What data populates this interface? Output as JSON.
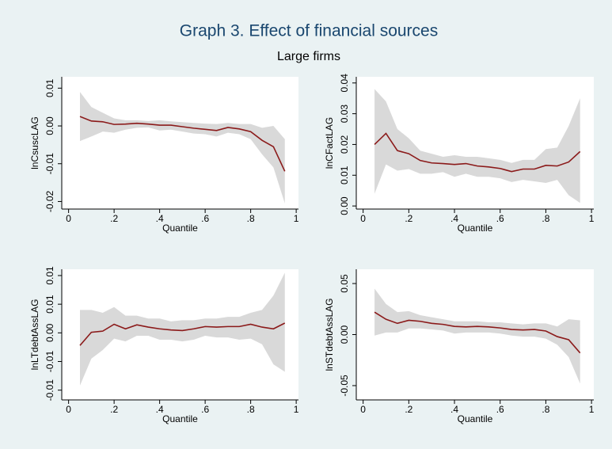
{
  "title": "Graph 3. Effect of financial sources",
  "subtitle": "Large firms",
  "chart_data": [
    {
      "type": "line",
      "ylabel": "lnCsuscLAG",
      "xlabel": "Quantile",
      "color": "#8b1a1a",
      "band_color": "#d9d9d9",
      "x": [
        0.05,
        0.1,
        0.15,
        0.2,
        0.25,
        0.3,
        0.35,
        0.4,
        0.45,
        0.5,
        0.55,
        0.6,
        0.65,
        0.7,
        0.75,
        0.8,
        0.85,
        0.9,
        0.95
      ],
      "values": [
        0.0025,
        0.0013,
        0.0011,
        0.0004,
        0.0005,
        0.0007,
        0.0005,
        0.0002,
        0.0002,
        -0.0002,
        -0.0006,
        -0.0009,
        -0.0012,
        -0.0004,
        -0.0008,
        -0.0015,
        -0.0038,
        -0.0055,
        -0.012
      ],
      "ci_upper": [
        0.009,
        0.005,
        0.0035,
        0.002,
        0.0015,
        0.0015,
        0.0013,
        0.0015,
        0.0012,
        0.001,
        0.0008,
        0.0006,
        0.0005,
        0.0008,
        0.0005,
        0.0005,
        -0.0005,
        0,
        -0.0035
      ],
      "ci_lower": [
        -0.004,
        -0.0028,
        -0.0015,
        -0.0018,
        -0.001,
        -0.0005,
        -0.0004,
        -0.0012,
        -0.001,
        -0.0015,
        -0.002,
        -0.0022,
        -0.0028,
        -0.0018,
        -0.0022,
        -0.0035,
        -0.0075,
        -0.011,
        -0.0205
      ],
      "xlim": [
        -0.03,
        1.01
      ],
      "xticks": [
        0,
        {
          "value": 0.2,
          "label": ".2"
        },
        {
          "value": 0.4,
          "label": ".4"
        },
        {
          "value": 0.6,
          "label": ".6"
        },
        {
          "value": 0.8,
          "label": ".8"
        },
        1
      ],
      "ylim": [
        -0.022,
        0.013
      ],
      "yticks": [
        {
          "value": -0.02,
          "label": "-0.02"
        },
        {
          "value": -0.01,
          "label": "-0.01"
        },
        {
          "value": 0,
          "label": "0.00"
        },
        0.01
      ]
    },
    {
      "type": "line",
      "ylabel": "lnCFactLAG",
      "xlabel": "Quantile",
      "color": "#8b1a1a",
      "band_color": "#d9d9d9",
      "x": [
        0.05,
        0.1,
        0.15,
        0.2,
        0.25,
        0.3,
        0.35,
        0.4,
        0.45,
        0.5,
        0.55,
        0.6,
        0.65,
        0.7,
        0.75,
        0.8,
        0.85,
        0.9,
        0.95
      ],
      "values": [
        0.02,
        0.0236,
        0.018,
        0.017,
        0.0148,
        0.014,
        0.0138,
        0.0135,
        0.0138,
        0.013,
        0.0127,
        0.0122,
        0.0112,
        0.012,
        0.012,
        0.0132,
        0.013,
        0.0143,
        0.0177
      ],
      "ci_upper": [
        0.038,
        0.034,
        0.025,
        0.022,
        0.018,
        0.017,
        0.016,
        0.0165,
        0.016,
        0.016,
        0.0155,
        0.015,
        0.014,
        0.015,
        0.015,
        0.0185,
        0.019,
        0.026,
        0.035
      ],
      "ci_lower": [
        0.004,
        0.0135,
        0.0115,
        0.012,
        0.0105,
        0.0105,
        0.011,
        0.0095,
        0.0105,
        0.0095,
        0.0095,
        0.009,
        0.0078,
        0.0085,
        0.008,
        0.0075,
        0.0085,
        0.0035,
        0.001
      ],
      "xlim": [
        -0.03,
        1.01
      ],
      "xticks": [
        0,
        {
          "value": 0.2,
          "label": ".2"
        },
        {
          "value": 0.4,
          "label": ".4"
        },
        {
          "value": 0.6,
          "label": ".6"
        },
        {
          "value": 0.8,
          "label": ".8"
        },
        1
      ],
      "ylim": [
        -0.001,
        0.042
      ],
      "yticks": [
        {
          "value": 0,
          "label": "0.00"
        },
        0.01,
        0.02,
        0.03,
        0.04
      ]
    },
    {
      "type": "line",
      "ylabel": "lnLTdebtAssLAG",
      "xlabel": "Quantile",
      "color": "#8b1a1a",
      "band_color": "#d9d9d9",
      "x": [
        0.05,
        0.1,
        0.15,
        0.2,
        0.25,
        0.3,
        0.35,
        0.4,
        0.45,
        0.5,
        0.55,
        0.6,
        0.65,
        0.7,
        0.75,
        0.8,
        0.85,
        0.9,
        0.95
      ],
      "values": [
        -0.0022,
        0.0001,
        0.0003,
        0.0015,
        0.0007,
        0.0014,
        0.001,
        0.0007,
        0.0005,
        0.0004,
        0.0007,
        0.0011,
        0.001,
        0.0011,
        0.0011,
        0.0015,
        0.001,
        0.0007,
        0.0017
      ],
      "ci_upper": [
        0.004,
        0.004,
        0.0035,
        0.0045,
        0.003,
        0.003,
        0.0025,
        0.0025,
        0.002,
        0.0022,
        0.0022,
        0.0025,
        0.0025,
        0.0028,
        0.0028,
        0.0035,
        0.004,
        0.0065,
        0.0105
      ],
      "ci_lower": [
        -0.0092,
        -0.0045,
        -0.003,
        -0.001,
        -0.0015,
        -0.0005,
        -0.0005,
        -0.0012,
        -0.0012,
        -0.0015,
        -0.0012,
        -0.0005,
        -0.0008,
        -0.0008,
        -0.0012,
        -0.001,
        -0.002,
        -0.0055,
        -0.0068
      ],
      "xlim": [
        -0.03,
        1.01
      ],
      "xticks": [
        0,
        {
          "value": 0.2,
          "label": ".2"
        },
        {
          "value": 0.4,
          "label": ".4"
        },
        {
          "value": 0.6,
          "label": ".6"
        },
        {
          "value": 0.8,
          "label": ".8"
        },
        1
      ],
      "ylim": [
        -0.0117,
        0.0111
      ],
      "yticks": [
        {
          "value": -0.01,
          "label": "-0.01"
        },
        {
          "value": -0.005,
          "label": "-0.01"
        },
        {
          "value": 0,
          "label": "0.00"
        },
        {
          "value": 0.005,
          "label": "0.01"
        },
        0.01
      ]
    },
    {
      "type": "line",
      "ylabel": "lnSTdebtAssLAG",
      "xlabel": "Quantile",
      "color": "#8b1a1a",
      "band_color": "#d9d9d9",
      "x": [
        0.05,
        0.1,
        0.15,
        0.2,
        0.25,
        0.3,
        0.35,
        0.4,
        0.45,
        0.5,
        0.55,
        0.6,
        0.65,
        0.7,
        0.75,
        0.8,
        0.85,
        0.9,
        0.95
      ],
      "values": [
        0.022,
        0.015,
        0.011,
        0.014,
        0.013,
        0.011,
        0.01,
        0.008,
        0.0075,
        0.008,
        0.0075,
        0.0065,
        0.005,
        0.0045,
        0.005,
        0.0035,
        -0.002,
        -0.005,
        -0.018
      ],
      "ci_upper": [
        0.045,
        0.03,
        0.022,
        0.023,
        0.019,
        0.017,
        0.015,
        0.013,
        0.013,
        0.013,
        0.012,
        0.012,
        0.011,
        0.01,
        0.011,
        0.011,
        0.008,
        0.015,
        0.014
      ],
      "ci_lower": [
        -0.001,
        0.002,
        0.002,
        0.006,
        0.006,
        0.005,
        0.004,
        0.001,
        0.002,
        0.002,
        0.002,
        0.001,
        -0.001,
        -0.002,
        -0.002,
        -0.004,
        -0.01,
        -0.022,
        -0.048
      ],
      "xlim": [
        -0.03,
        1.01
      ],
      "xticks": [
        0,
        {
          "value": 0.2,
          "label": ".2"
        },
        {
          "value": 0.4,
          "label": ".4"
        },
        {
          "value": 0.6,
          "label": ".6"
        },
        {
          "value": 0.8,
          "label": ".8"
        },
        1
      ],
      "ylim": [
        -0.064,
        0.064
      ],
      "yticks": [
        {
          "value": -0.05,
          "label": "-0.05"
        },
        {
          "value": 0,
          "label": "0.00"
        },
        0.05
      ]
    }
  ]
}
